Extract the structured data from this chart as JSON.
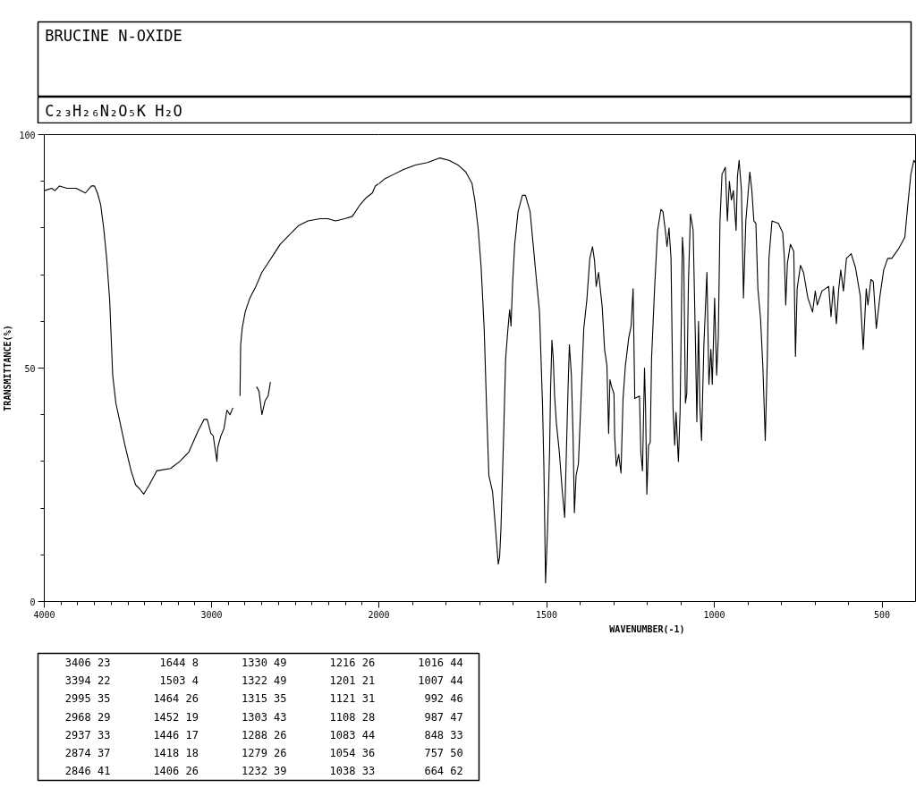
{
  "chart_data": [
    {
      "type": "line",
      "title": "BRUCINE N-OXIDE",
      "subtitle": "C₂₃H₂₆N₂O₅K H₂O",
      "ylabel": "TRANSMITTANCE(%)",
      "xlim": [
        4000,
        2000
      ],
      "xticks": [
        4000,
        {
          "value": 3900,
          "label": null
        },
        {
          "value": 3800,
          "label": null
        },
        {
          "value": 3700,
          "label": null
        },
        {
          "value": 3600,
          "label": null
        },
        {
          "value": 3500,
          "label": null
        },
        {
          "value": 3400,
          "label": null
        },
        {
          "value": 3300,
          "label": null
        },
        {
          "value": 3200,
          "label": null
        },
        {
          "value": 3100,
          "label": null
        },
        3000,
        {
          "value": 2900,
          "label": null
        },
        {
          "value": 2800,
          "label": null
        },
        {
          "value": 2700,
          "label": null
        },
        {
          "value": 2600,
          "label": null
        },
        {
          "value": 2500,
          "label": null
        },
        {
          "value": 2400,
          "label": null
        },
        {
          "value": 2300,
          "label": null
        },
        {
          "value": 2200,
          "label": null
        },
        {
          "value": 2100,
          "label": null
        },
        2000
      ],
      "ylim": [
        0,
        100
      ],
      "yticks": [
        0,
        {
          "value": 10,
          "label": null
        },
        {
          "value": 20,
          "label": null
        },
        {
          "value": 30,
          "label": null
        },
        {
          "value": 40,
          "label": null
        },
        50,
        {
          "value": 60,
          "label": null
        },
        {
          "value": 70,
          "label": null
        },
        {
          "value": 80,
          "label": null
        },
        {
          "value": 90,
          "label": null
        },
        100
      ],
      "series": [
        {
          "color": "#000000",
          "x": [
            4000,
            3955,
            3936,
            3909,
            3864,
            3809,
            3754,
            3718,
            3700,
            3682,
            3663,
            3645,
            3627,
            3609,
            3591,
            3572,
            3545,
            3518,
            3481,
            3454,
            3427,
            3406,
            3372,
            3327,
            3245,
            3190,
            3136,
            3081,
            3045,
            3026,
            3004,
            2990,
            2968,
            2963,
            2944,
            2926,
            2908,
            2890,
            2872
          ],
          "values": [
            88,
            88.5,
            88,
            89,
            88.5,
            88.5,
            87.5,
            89,
            89,
            87.5,
            85,
            80,
            73.5,
            64.5,
            48.5,
            42.5,
            38,
            33.5,
            28,
            25,
            24,
            23,
            25,
            28,
            28.5,
            30,
            32,
            36.5,
            39,
            39,
            36,
            35.5,
            30,
            33,
            35.5,
            37,
            41,
            40,
            41.5
          ]
        },
        {
          "color": "#000000",
          "x": [
            2830,
            2826,
            2817,
            2799,
            2771,
            2735,
            2699,
            2662,
            2626,
            2590,
            2535,
            2480,
            2424,
            2351,
            2305,
            2259,
            2204,
            2158,
            2112,
            2075,
            2039,
            2021,
            2000
          ],
          "values": [
            44,
            55,
            58.5,
            62,
            65,
            67.5,
            70.5,
            72.5,
            74.5,
            76.5,
            78.5,
            80.5,
            81.5,
            82,
            82,
            81.5,
            82,
            82.5,
            85,
            86.5,
            87.5,
            89,
            89.5
          ]
        },
        {
          "color": "#000000",
          "x": [
            2731,
            2716,
            2699,
            2680,
            2662,
            2648
          ],
          "values": [
            46,
            45,
            40,
            43,
            44,
            47
          ]
        }
      ],
      "annotations": [
        "3406 23",
        "3394 22",
        "2995 35",
        "2968 29",
        "2937 33",
        "2874 37",
        "2846 41",
        "1644 8",
        "1503 4",
        "1464 26",
        "1452 19",
        "1446 17",
        "1418 18",
        "1406 26",
        "1330 49",
        "1322 49",
        "1315 35",
        "1303 43",
        "1288 26",
        "1279 26",
        "1232 39",
        "1216 26",
        "1201 21",
        "1121 31",
        "1108 28",
        "1083 44",
        "1054 36",
        "1038 33",
        "1016 44",
        "1007 44",
        "992 46",
        "987 47",
        "848 33",
        "757 50",
        "664 62"
      ]
    },
    {
      "type": "line",
      "xlabel": "WAVENUMBER(-1)",
      "xlim": [
        2000,
        400
      ],
      "xticks": [
        {
          "value": 1900,
          "label": null
        },
        {
          "value": 1800,
          "label": null
        },
        {
          "value": 1700,
          "label": null
        },
        {
          "value": 1600,
          "label": null
        },
        1500,
        {
          "value": 1400,
          "label": null
        },
        {
          "value": 1300,
          "label": null
        },
        {
          "value": 1200,
          "label": null
        },
        {
          "value": 1100,
          "label": null
        },
        1000,
        {
          "value": 900,
          "label": null
        },
        {
          "value": 800,
          "label": null
        },
        {
          "value": 700,
          "label": null
        },
        {
          "value": 600,
          "label": null
        },
        500
      ],
      "ylim": [
        0,
        100
      ],
      "tick_labels": "x",
      "series": [
        {
          "color": "#000000",
          "x": [
            2000,
            1983,
            1955,
            1928,
            1891,
            1855,
            1818,
            1791,
            1764,
            1741,
            1722,
            1713,
            1704,
            1695,
            1686,
            1679,
            1672,
            1661,
            1652,
            1644,
            1640,
            1636,
            1628,
            1622,
            1615,
            1610,
            1606,
            1601,
            1595,
            1585,
            1572,
            1563,
            1549,
            1540,
            1531,
            1521,
            1512,
            1508,
            1503,
            1497,
            1491,
            1488,
            1484,
            1480,
            1476,
            1471,
            1462,
            1453,
            1446,
            1442,
            1436,
            1432,
            1426,
            1421,
            1417,
            1412,
            1405,
            1398,
            1389,
            1380,
            1371,
            1363,
            1357,
            1352,
            1345,
            1334,
            1327,
            1320,
            1315,
            1311,
            1306,
            1299,
            1297,
            1292,
            1285,
            1278,
            1272,
            1265,
            1255,
            1248,
            1242,
            1237,
            1223,
            1219,
            1214,
            1208,
            1205,
            1201,
            1196,
            1191,
            1187,
            1178,
            1169,
            1159,
            1153,
            1146,
            1141,
            1135,
            1129,
            1123,
            1118,
            1114,
            1107,
            1102,
            1095,
            1091,
            1086,
            1082,
            1077,
            1071,
            1063,
            1056,
            1052,
            1047,
            1043,
            1038,
            1031,
            1022,
            1016,
            1010,
            1006,
            999,
            993,
            988,
            983,
            977,
            967,
            961,
            955,
            949,
            943,
            935,
            931,
            926,
            919,
            913,
            906,
            894,
            888,
            882,
            876,
            870,
            862,
            855,
            848,
            842,
            837,
            828,
            809,
            796,
            791,
            787,
            782,
            773,
            763,
            758,
            753,
            743,
            734,
            721,
            707,
            699,
            693,
            679,
            659,
            652,
            645,
            636,
            629,
            623,
            615,
            606,
            592,
            579,
            565,
            556,
            547,
            542,
            533,
            526,
            517,
            506,
            495,
            483,
            471,
            451,
            432,
            423,
            414,
            405,
            401
          ],
          "values": [
            89.5,
            90.5,
            91.5,
            92.5,
            93.5,
            94,
            95,
            94.5,
            93.5,
            92,
            89.5,
            85.5,
            80,
            71.5,
            58.5,
            42,
            27,
            23.5,
            15.5,
            8,
            9.5,
            15.5,
            35.5,
            52,
            58.5,
            62.5,
            59,
            68.5,
            76.5,
            83.5,
            87,
            87,
            83.5,
            76.5,
            69.5,
            62,
            42,
            29,
            4,
            15.5,
            32,
            45.5,
            56,
            52,
            44,
            38.5,
            32,
            23.5,
            18,
            29,
            45.5,
            55,
            48.5,
            35.5,
            19,
            27,
            29.5,
            42,
            58.5,
            64.5,
            73.5,
            76,
            73,
            67.5,
            70.5,
            63,
            54,
            50.5,
            36,
            47.5,
            46,
            44.5,
            35.5,
            29,
            31.5,
            27.5,
            43.5,
            50.5,
            56.5,
            59,
            67,
            43.5,
            44,
            32,
            28,
            50,
            42,
            23,
            33.5,
            34,
            52,
            67,
            79.5,
            84,
            83.5,
            79.5,
            76,
            80,
            73.5,
            41.5,
            33.5,
            40.5,
            30,
            40.5,
            78,
            73.5,
            42.5,
            44.5,
            68.5,
            83,
            79.5,
            55,
            38.5,
            60,
            42,
            34.5,
            55,
            70.5,
            46.5,
            54,
            46.5,
            65,
            48.5,
            56.5,
            81.5,
            91.5,
            93,
            81.5,
            90,
            86,
            88,
            79.5,
            91,
            94.5,
            88,
            65,
            81.5,
            92,
            88,
            81.5,
            81,
            67,
            60.5,
            50,
            34.5,
            52,
            73.5,
            81.5,
            81,
            79,
            73.5,
            63.5,
            72.5,
            76.5,
            75,
            52.5,
            67,
            72,
            70.5,
            65,
            62,
            66.5,
            63.5,
            66.5,
            67.5,
            61,
            67.5,
            59.5,
            67,
            71,
            66.5,
            73.5,
            74.5,
            71.5,
            65.5,
            54,
            67,
            63.5,
            69,
            68.5,
            58.5,
            65.5,
            71,
            73.5,
            73.5,
            75.5,
            78,
            85,
            91.5,
            94.5,
            94
          ]
        }
      ]
    }
  ]
}
